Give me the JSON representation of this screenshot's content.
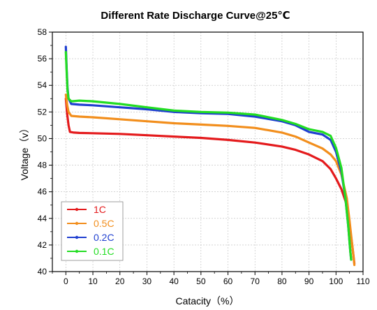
{
  "chart_data": {
    "type": "line",
    "title": "Different Rate Discharge Curve@25℃",
    "xlabel": "Catacity（%）",
    "ylabel": "Voltage（v）",
    "xlim": [
      -5,
      110
    ],
    "ylim": [
      40,
      58
    ],
    "xticks": [
      "0",
      "10",
      "20",
      "30",
      "40",
      "50",
      "60",
      "70",
      "80",
      "90",
      "100",
      "110"
    ],
    "yticks": [
      "40",
      "42",
      "44",
      "46",
      "48",
      "50",
      "52",
      "54",
      "56",
      "58"
    ],
    "grid": true,
    "legend": "bottom-left",
    "series": [
      {
        "name": "1C",
        "color": "#e41a1c",
        "points": [
          [
            0,
            53.0
          ],
          [
            0.5,
            51.8
          ],
          [
            1,
            51.0
          ],
          [
            1.5,
            50.5
          ],
          [
            3,
            50.45
          ],
          [
            5,
            50.42
          ],
          [
            10,
            50.4
          ],
          [
            20,
            50.35
          ],
          [
            30,
            50.25
          ],
          [
            40,
            50.15
          ],
          [
            50,
            50.05
          ],
          [
            60,
            49.9
          ],
          [
            70,
            49.7
          ],
          [
            80,
            49.4
          ],
          [
            85,
            49.15
          ],
          [
            90,
            48.8
          ],
          [
            95,
            48.3
          ],
          [
            98,
            47.7
          ],
          [
            100,
            47.0
          ],
          [
            102,
            46.2
          ],
          [
            104,
            45.0
          ],
          [
            105,
            43.5
          ],
          [
            106,
            42.0
          ],
          [
            106.8,
            40.6
          ]
        ]
      },
      {
        "name": "0.5C",
        "color": "#f28e1c",
        "points": [
          [
            0,
            53.3
          ],
          [
            0.5,
            52.5
          ],
          [
            1,
            52.0
          ],
          [
            2,
            51.7
          ],
          [
            5,
            51.65
          ],
          [
            10,
            51.6
          ],
          [
            20,
            51.45
          ],
          [
            30,
            51.3
          ],
          [
            40,
            51.15
          ],
          [
            50,
            51.05
          ],
          [
            60,
            50.95
          ],
          [
            70,
            50.8
          ],
          [
            80,
            50.45
          ],
          [
            85,
            50.15
          ],
          [
            90,
            49.7
          ],
          [
            95,
            49.25
          ],
          [
            98,
            48.8
          ],
          [
            100,
            48.3
          ],
          [
            102,
            47.3
          ],
          [
            104,
            45.5
          ],
          [
            105,
            43.8
          ],
          [
            106,
            42.0
          ],
          [
            106.8,
            40.5
          ]
        ]
      },
      {
        "name": "0.2C",
        "color": "#1f3fd0",
        "points": [
          [
            0,
            56.9
          ],
          [
            0.3,
            55.2
          ],
          [
            0.6,
            53.8
          ],
          [
            1,
            53.0
          ],
          [
            2,
            52.6
          ],
          [
            5,
            52.55
          ],
          [
            10,
            52.5
          ],
          [
            20,
            52.35
          ],
          [
            30,
            52.2
          ],
          [
            40,
            52.0
          ],
          [
            50,
            51.9
          ],
          [
            60,
            51.85
          ],
          [
            70,
            51.65
          ],
          [
            80,
            51.3
          ],
          [
            85,
            51.0
          ],
          [
            90,
            50.5
          ],
          [
            95,
            50.3
          ],
          [
            98,
            49.9
          ],
          [
            100,
            49.0
          ],
          [
            102,
            47.5
          ],
          [
            103.5,
            45.5
          ],
          [
            104.5,
            43.5
          ],
          [
            105.3,
            41.5
          ],
          [
            105.6,
            40.9
          ]
        ]
      },
      {
        "name": "0.1C",
        "color": "#22dd22",
        "points": [
          [
            0,
            56.5
          ],
          [
            0.3,
            55.0
          ],
          [
            0.6,
            53.6
          ],
          [
            1,
            53.0
          ],
          [
            2,
            52.8
          ],
          [
            5,
            52.85
          ],
          [
            10,
            52.8
          ],
          [
            20,
            52.6
          ],
          [
            30,
            52.35
          ],
          [
            40,
            52.1
          ],
          [
            50,
            52.0
          ],
          [
            60,
            51.95
          ],
          [
            70,
            51.8
          ],
          [
            80,
            51.4
          ],
          [
            85,
            51.1
          ],
          [
            90,
            50.7
          ],
          [
            95,
            50.5
          ],
          [
            98,
            50.2
          ],
          [
            100,
            49.3
          ],
          [
            102,
            47.8
          ],
          [
            103.5,
            45.5
          ],
          [
            104.5,
            43.5
          ],
          [
            105.3,
            41.5
          ],
          [
            105.6,
            40.9
          ]
        ]
      }
    ]
  }
}
